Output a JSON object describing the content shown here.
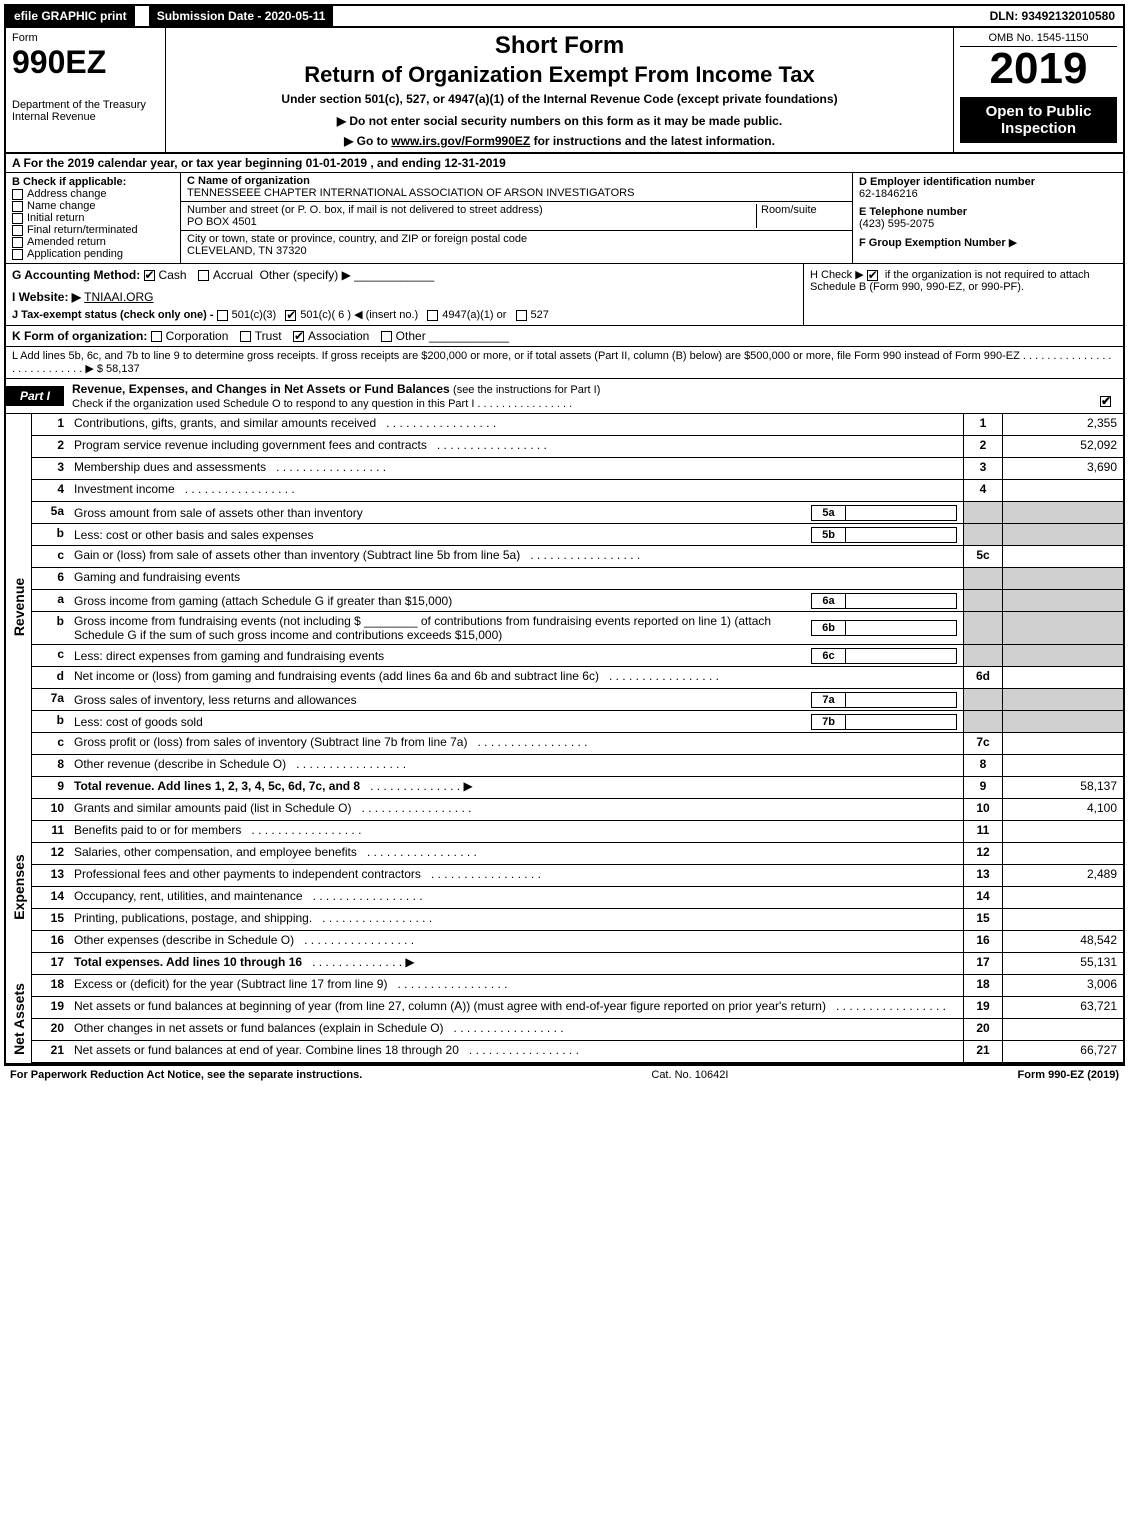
{
  "topbar": {
    "efile": "efile GRAPHIC print",
    "submission": "Submission Date - 2020-05-11",
    "dln": "DLN: 93492132010580"
  },
  "header": {
    "form_word": "Form",
    "form_no": "990EZ",
    "dept1": "Department of the Treasury",
    "dept2": "Internal Revenue",
    "title1": "Short Form",
    "title2": "Return of Organization Exempt From Income Tax",
    "subtitle": "Under section 501(c), 527, or 4947(a)(1) of the Internal Revenue Code (except private foundations)",
    "notice": "Do not enter social security numbers on this form as it may be made public.",
    "goto_pre": "Go to ",
    "goto_link": "www.irs.gov/Form990EZ",
    "goto_post": " for instructions and the latest information.",
    "omb": "OMB No. 1545-1150",
    "year": "2019",
    "openbox": "Open to Public Inspection"
  },
  "rowA": "A  For the 2019 calendar year, or tax year beginning 01-01-2019 , and ending 12-31-2019",
  "colB": {
    "title": "B  Check if applicable:",
    "items": [
      "Address change",
      "Name change",
      "Initial return",
      "Final return/terminated",
      "Amended return",
      "Application pending"
    ]
  },
  "colC": {
    "name_lbl": "C Name of organization",
    "name_val": "TENNESSEEE CHAPTER INTERNATIONAL ASSOCIATION OF ARSON INVESTIGATORS",
    "addr_lbl": "Number and street (or P. O. box, if mail is not delivered to street address)",
    "room_lbl": "Room/suite",
    "addr_val": "PO BOX 4501",
    "city_lbl": "City or town, state or province, country, and ZIP or foreign postal code",
    "city_val": "CLEVELAND, TN  37320"
  },
  "colDE": {
    "d_lbl": "D Employer identification number",
    "d_val": "62-1846216",
    "e_lbl": "E Telephone number",
    "e_val": "(423) 595-2075",
    "f_lbl": "F Group Exemption Number",
    "f_arrow": "▶"
  },
  "rowG": {
    "label": "G Accounting Method:",
    "opts": [
      "Cash",
      "Accrual",
      "Other (specify)"
    ],
    "checked": 0
  },
  "rowH": {
    "text1": "H  Check ▶",
    "text2": "if the organization is not required to attach Schedule B (Form 990, 990-EZ, or 990-PF)."
  },
  "rowI": {
    "label": "I Website: ▶",
    "val": "TNIAAI.ORG"
  },
  "rowJ": {
    "label": "J Tax-exempt status (check only one) -",
    "opts": [
      "501(c)(3)",
      "501(c)( 6 ) ◀ (insert no.)",
      "4947(a)(1) or",
      "527"
    ],
    "checked": 1
  },
  "rowK": {
    "label": "K Form of organization:",
    "opts": [
      "Corporation",
      "Trust",
      "Association",
      "Other"
    ],
    "checked": 2
  },
  "rowL": {
    "text": "L Add lines 5b, 6c, and 7b to line 9 to determine gross receipts. If gross receipts are $200,000 or more, or if total assets (Part II, column (B) below) are $500,000 or more, file Form 990 instead of Form 990-EZ .  .  .  .  .  .  .  .  .  .  .  .  .  .  .  .  .  .  .  .  .  .  .  .  .  .  .  ▶ $ 58,137"
  },
  "part1": {
    "tag": "Part I",
    "title": "Revenue, Expenses, and Changes in Net Assets or Fund Balances",
    "sub": "(see the instructions for Part I)",
    "check": "Check if the organization used Schedule O to respond to any question in this Part I .  .  .  .  .  .  .  .  .  .  .  .  .  .  .  ."
  },
  "sections": {
    "revenue": "Revenue",
    "expenses": "Expenses",
    "netassets": "Net Assets"
  },
  "lines": {
    "1": {
      "n": "1",
      "d": "Contributions, gifts, grants, and similar amounts received",
      "i": "1",
      "v": "2,355"
    },
    "2": {
      "n": "2",
      "d": "Program service revenue including government fees and contracts",
      "i": "2",
      "v": "52,092"
    },
    "3": {
      "n": "3",
      "d": "Membership dues and assessments",
      "i": "3",
      "v": "3,690"
    },
    "4": {
      "n": "4",
      "d": "Investment income",
      "i": "4",
      "v": ""
    },
    "5a": {
      "n": "5a",
      "d": "Gross amount from sale of assets other than inventory",
      "mi": "5a"
    },
    "5b": {
      "n": "b",
      "d": "Less: cost or other basis and sales expenses",
      "mi": "5b"
    },
    "5c": {
      "n": "c",
      "d": "Gain or (loss) from sale of assets other than inventory (Subtract line 5b from line 5a)",
      "i": "5c",
      "v": ""
    },
    "6": {
      "n": "6",
      "d": "Gaming and fundraising events"
    },
    "6a": {
      "n": "a",
      "d": "Gross income from gaming (attach Schedule G if greater than $15,000)",
      "mi": "6a"
    },
    "6b": {
      "n": "b",
      "d": "Gross income from fundraising events (not including $ ________ of contributions from fundraising events reported on line 1) (attach Schedule G if the sum of such gross income and contributions exceeds $15,000)",
      "mi": "6b"
    },
    "6c": {
      "n": "c",
      "d": "Less: direct expenses from gaming and fundraising events",
      "mi": "6c"
    },
    "6d": {
      "n": "d",
      "d": "Net income or (loss) from gaming and fundraising events (add lines 6a and 6b and subtract line 6c)",
      "i": "6d",
      "v": ""
    },
    "7a": {
      "n": "7a",
      "d": "Gross sales of inventory, less returns and allowances",
      "mi": "7a"
    },
    "7b": {
      "n": "b",
      "d": "Less: cost of goods sold",
      "mi": "7b"
    },
    "7c": {
      "n": "c",
      "d": "Gross profit or (loss) from sales of inventory (Subtract line 7b from line 7a)",
      "i": "7c",
      "v": ""
    },
    "8": {
      "n": "8",
      "d": "Other revenue (describe in Schedule O)",
      "i": "8",
      "v": ""
    },
    "9": {
      "n": "9",
      "d": "Total revenue. Add lines 1, 2, 3, 4, 5c, 6d, 7c, and 8",
      "i": "9",
      "v": "58,137",
      "bold": true,
      "arrow": true
    },
    "10": {
      "n": "10",
      "d": "Grants and similar amounts paid (list in Schedule O)",
      "i": "10",
      "v": "4,100"
    },
    "11": {
      "n": "11",
      "d": "Benefits paid to or for members",
      "i": "11",
      "v": ""
    },
    "12": {
      "n": "12",
      "d": "Salaries, other compensation, and employee benefits",
      "i": "12",
      "v": ""
    },
    "13": {
      "n": "13",
      "d": "Professional fees and other payments to independent contractors",
      "i": "13",
      "v": "2,489"
    },
    "14": {
      "n": "14",
      "d": "Occupancy, rent, utilities, and maintenance",
      "i": "14",
      "v": ""
    },
    "15": {
      "n": "15",
      "d": "Printing, publications, postage, and shipping.",
      "i": "15",
      "v": ""
    },
    "16": {
      "n": "16",
      "d": "Other expenses (describe in Schedule O)",
      "i": "16",
      "v": "48,542"
    },
    "17": {
      "n": "17",
      "d": "Total expenses. Add lines 10 through 16",
      "i": "17",
      "v": "55,131",
      "bold": true,
      "arrow": true
    },
    "18": {
      "n": "18",
      "d": "Excess or (deficit) for the year (Subtract line 17 from line 9)",
      "i": "18",
      "v": "3,006"
    },
    "19": {
      "n": "19",
      "d": "Net assets or fund balances at beginning of year (from line 27, column (A)) (must agree with end-of-year figure reported on prior year's return)",
      "i": "19",
      "v": "63,721"
    },
    "20": {
      "n": "20",
      "d": "Other changes in net assets or fund balances (explain in Schedule O)",
      "i": "20",
      "v": ""
    },
    "21": {
      "n": "21",
      "d": "Net assets or fund balances at end of year. Combine lines 18 through 20",
      "i": "21",
      "v": "66,727"
    }
  },
  "footer": {
    "left": "For Paperwork Reduction Act Notice, see the separate instructions.",
    "mid": "Cat. No. 10642I",
    "right": "Form 990-EZ (2019)"
  },
  "colors": {
    "black": "#000000",
    "white": "#ffffff",
    "shade": "#d0d0d0"
  }
}
